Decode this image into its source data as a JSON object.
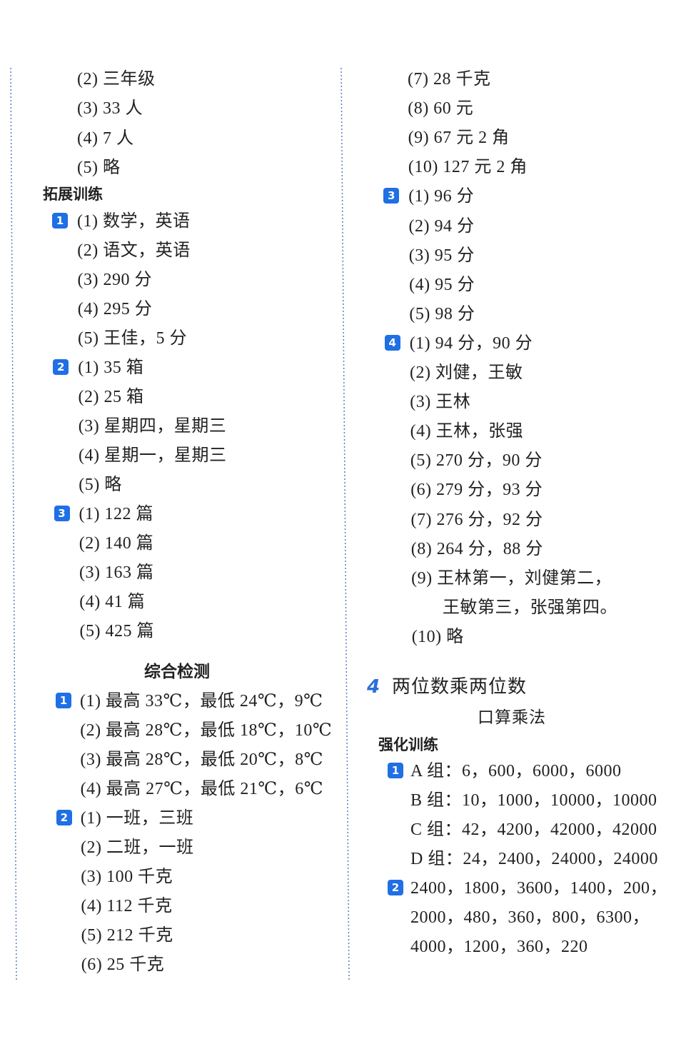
{
  "colors": {
    "badge": "#1f6fe5",
    "chapter_number": "#2a6fd6",
    "text": "#222222",
    "divider": "#5a7fc0"
  },
  "left": {
    "top_lines": [
      "(2) 三年级",
      "(3) 33 人",
      "(4) 7 人",
      "(5) 略"
    ],
    "section1_heading": "拓展训练",
    "section1_lines": [
      {
        "badge": "1",
        "text": "(1) 数学，英语"
      },
      {
        "badge": "",
        "text": "(2) 语文，英语"
      },
      {
        "badge": "",
        "text": "(3) 290 分"
      },
      {
        "badge": "",
        "text": "(4) 295 分"
      },
      {
        "badge": "",
        "text": "(5) 王佳，5 分"
      },
      {
        "badge": "2",
        "text": "(1) 35 箱"
      },
      {
        "badge": "",
        "text": "(2) 25 箱"
      },
      {
        "badge": "",
        "text": "(3) 星期四，星期三"
      },
      {
        "badge": "",
        "text": "(4) 星期一，星期三"
      },
      {
        "badge": "",
        "text": "(5) 略"
      },
      {
        "badge": "3",
        "text": "(1) 122 篇"
      },
      {
        "badge": "",
        "text": "(2) 140 篇"
      },
      {
        "badge": "",
        "text": "(3) 163 篇"
      },
      {
        "badge": "",
        "text": "(4) 41 篇"
      },
      {
        "badge": "",
        "text": "(5) 425 篇"
      }
    ],
    "section2_heading": "综合检测",
    "section2_lines": [
      {
        "badge": "1",
        "text": "(1) 最高 33℃，最低 24℃，9℃"
      },
      {
        "badge": "",
        "text": "(2) 最高 28℃，最低 18℃，10℃"
      },
      {
        "badge": "",
        "text": "(3) 最高 28℃，最低 20℃，8℃"
      },
      {
        "badge": "",
        "text": "(4) 最高 27℃，最低 21℃，6℃"
      },
      {
        "badge": "2",
        "text": "(1) 一班，三班"
      },
      {
        "badge": "",
        "text": "(2) 二班，一班"
      },
      {
        "badge": "",
        "text": "(3) 100 千克"
      },
      {
        "badge": "",
        "text": "(4) 112 千克"
      },
      {
        "badge": "",
        "text": "(5) 212 千克"
      },
      {
        "badge": "",
        "text": "(6) 25 千克"
      }
    ]
  },
  "right": {
    "top_lines": [
      {
        "badge": "",
        "text": "(7) 28 千克"
      },
      {
        "badge": "",
        "text": "(8) 60 元"
      },
      {
        "badge": "",
        "text": "(9) 67 元 2 角"
      },
      {
        "badge": "",
        "text": "(10) 127 元 2 角"
      },
      {
        "badge": "3",
        "text": "(1) 96 分"
      },
      {
        "badge": "",
        "text": "(2) 94 分"
      },
      {
        "badge": "",
        "text": "(3) 95 分"
      },
      {
        "badge": "",
        "text": "(4) 95 分"
      },
      {
        "badge": "",
        "text": "(5) 98 分"
      },
      {
        "badge": "4",
        "text": "(1) 94 分，90 分"
      },
      {
        "badge": "",
        "text": "(2) 刘健，王敏"
      },
      {
        "badge": "",
        "text": "(3) 王林"
      },
      {
        "badge": "",
        "text": "(4) 王林，张强"
      },
      {
        "badge": "",
        "text": "(5) 270 分，90 分"
      },
      {
        "badge": "",
        "text": "(6) 279 分，93 分"
      },
      {
        "badge": "",
        "text": "(7) 276 分，92 分"
      },
      {
        "badge": "",
        "text": "(8) 264 分，88 分"
      },
      {
        "badge": "",
        "text": "(9) 王林第一，刘健第二，"
      },
      {
        "badge": "",
        "text": "王敏第三，张强第四。"
      },
      {
        "badge": "",
        "text": "(10) 略"
      }
    ],
    "chapter_number": "4",
    "chapter_title": "两位数乘两位数",
    "lesson_title": "口算乘法",
    "section_heading": "强化训练",
    "section_lines": [
      {
        "badge": "1",
        "text": "A 组：6，600，6000，6000"
      },
      {
        "badge": "",
        "text": "B 组：10，1000，10000，10000"
      },
      {
        "badge": "",
        "text": "C 组：42，4200，42000，42000"
      },
      {
        "badge": "",
        "text": "D 组：24，2400，24000，24000"
      },
      {
        "badge": "2",
        "text": "2400，1800，3600，1400，200，"
      },
      {
        "badge": "",
        "text": "2000，480，360，800，6300，"
      },
      {
        "badge": "",
        "text": "4000，1200，360，220"
      }
    ]
  }
}
